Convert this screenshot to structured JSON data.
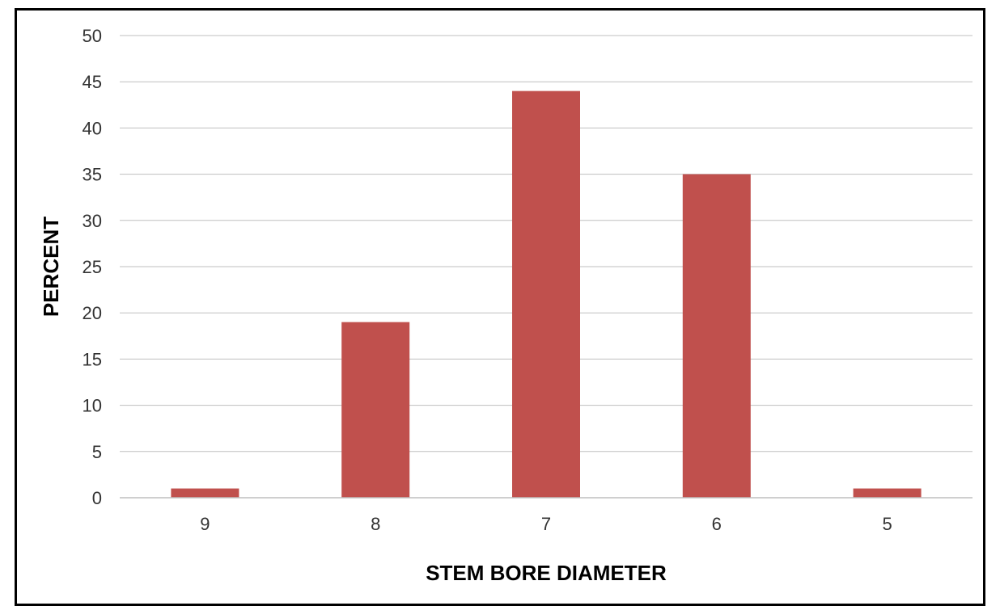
{
  "chart_data": {
    "type": "bar",
    "categories": [
      "9",
      "8",
      "7",
      "6",
      "5"
    ],
    "values": [
      1,
      19,
      44,
      35,
      1
    ],
    "title": "",
    "xlabel": "STEM BORE DIAMETER",
    "ylabel": "PERCENT",
    "ylim": [
      0,
      50
    ],
    "yticks": [
      0,
      5,
      10,
      15,
      20,
      25,
      30,
      35,
      40,
      45,
      50
    ],
    "grid": true,
    "legend": "none",
    "bar_color": "#c0504d",
    "grid_color": "#bfbfbf"
  }
}
